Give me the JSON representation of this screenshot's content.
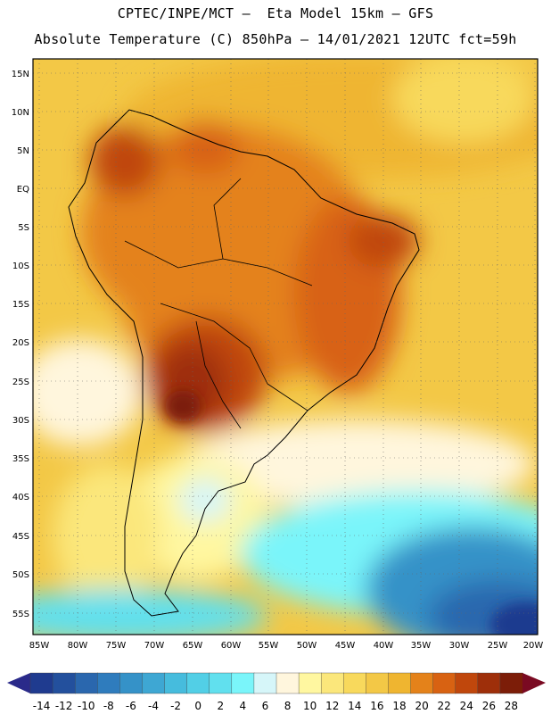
{
  "header": {
    "line1": "CPTEC/INPE/MCT –  Eta Model 15km – GFS",
    "line2": "Absolute Temperature (C) 850hPa – 14/01/2021 12UTC fct=59h"
  },
  "axes": {
    "lat_labels": [
      "15N",
      "10N",
      "5N",
      "EQ",
      "5S",
      "10S",
      "15S",
      "20S",
      "25S",
      "30S",
      "35S",
      "40S",
      "45S",
      "50S",
      "55S"
    ],
    "lon_labels": [
      "85W",
      "80W",
      "75W",
      "70W",
      "65W",
      "60W",
      "55W",
      "50W",
      "45W",
      "40W",
      "35W",
      "30W",
      "25W",
      "20W"
    ]
  },
  "colorbar": {
    "labels": [
      "-14",
      "-12",
      "-10",
      "-8",
      "-6",
      "-4",
      "-2",
      "0",
      "2",
      "4",
      "6",
      "8",
      "10",
      "12",
      "14",
      "16",
      "18",
      "20",
      "22",
      "24",
      "26",
      "28"
    ],
    "colors": [
      "#1f3b8f",
      "#23509d",
      "#2a67ae",
      "#2f7cbd",
      "#3592c8",
      "#3ea7d3",
      "#46bcdd",
      "#52cfe6",
      "#61e0ee",
      "#7af5fa",
      "#d6f6f9",
      "#fff6dd",
      "#fff7a0",
      "#fbe77b",
      "#f8d95c",
      "#f3c846",
      "#efb530",
      "#e4821a",
      "#d86212",
      "#c0470c",
      "#9e2f0a",
      "#7c1d08"
    ],
    "under_color": "#2a2a8a",
    "over_color": "#7a0a22"
  }
}
